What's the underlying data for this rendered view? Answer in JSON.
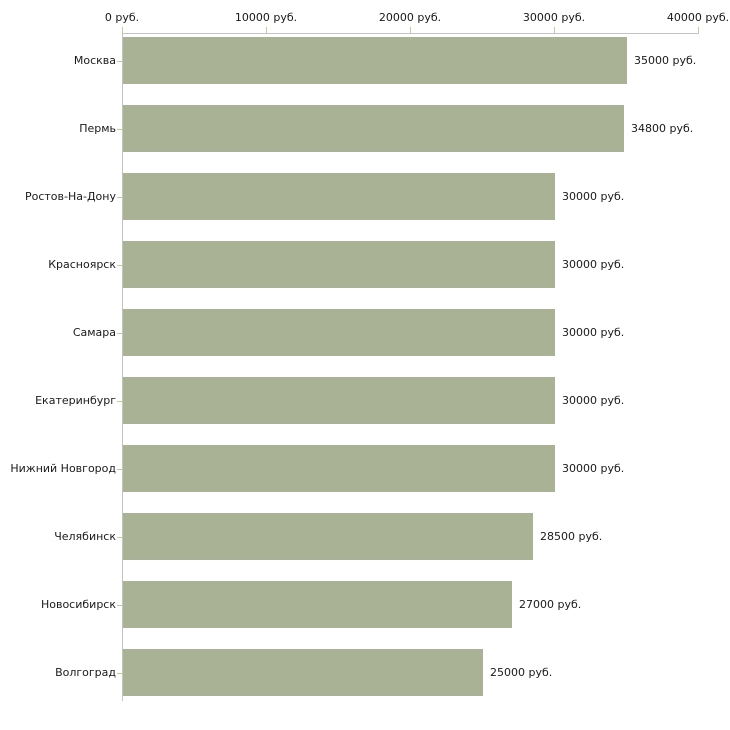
{
  "chart_data": {
    "type": "bar",
    "orientation": "horizontal",
    "title": "",
    "xlabel": "",
    "ylabel": "",
    "categories": [
      "Москва",
      "Пермь",
      "Ростов-На-Дону",
      "Красноярск",
      "Самара",
      "Екатеринбург",
      "Нижний Новгород",
      "Челябинск",
      "Новосибирск",
      "Волгоград"
    ],
    "values": [
      35000,
      34800,
      30000,
      30000,
      30000,
      30000,
      30000,
      28500,
      27000,
      25000
    ],
    "value_labels": [
      "35000 руб.",
      "34800 руб.",
      "30000 руб.",
      "30000 руб.",
      "30000 руб.",
      "30000 руб.",
      "30000 руб.",
      "28500 руб.",
      "27000 руб.",
      "25000 руб."
    ],
    "x_axis": {
      "position": "top",
      "range": [
        0,
        40000
      ],
      "ticks": [
        0,
        10000,
        20000,
        30000,
        40000
      ],
      "tick_labels": [
        "0 руб.",
        "10000 руб.",
        "20000 руб.",
        "30000 руб.",
        "40000 руб."
      ]
    },
    "grid": "off",
    "legend": "none",
    "colors": {
      "bar_fill": "#a9b294",
      "axis_line": "#c3c3c3",
      "tick_mark": "#c8c89b",
      "text": "#1a1a1a",
      "background": "#ffffff"
    }
  }
}
